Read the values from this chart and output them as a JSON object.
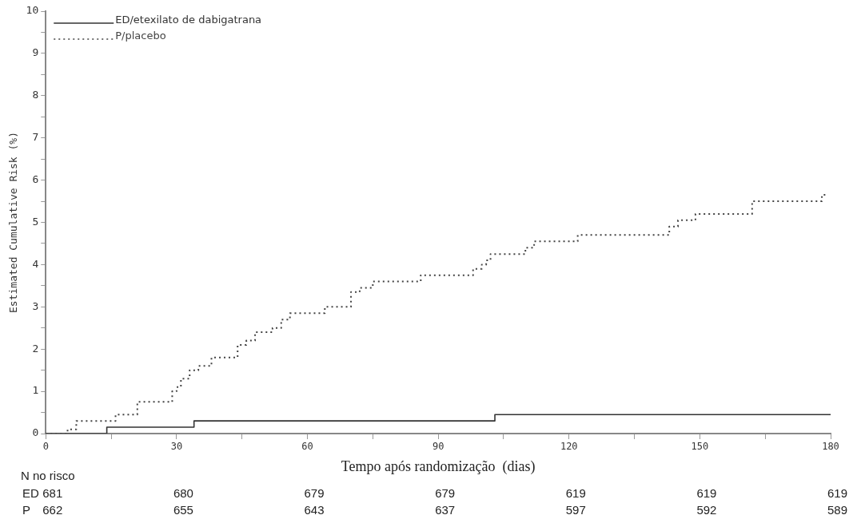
{
  "chart_data": {
    "type": "step",
    "xlabel": "Tempo após randomização  (dias)",
    "ylabel": "Estimated Cumulative Risk (%)",
    "xlim": [
      0,
      180
    ],
    "xticks": [
      0,
      {
        "value": 15,
        "label": null
      },
      30,
      {
        "value": 45,
        "label": null
      },
      60,
      {
        "value": 75,
        "label": null
      },
      90,
      {
        "value": 105,
        "label": null
      },
      120,
      {
        "value": 135,
        "label": null
      },
      150,
      {
        "value": 165,
        "label": null
      },
      180
    ],
    "ylim": [
      0,
      10
    ],
    "yticks": [
      0,
      {
        "value": 0.5,
        "label": null
      },
      1,
      {
        "value": 1.5,
        "label": null
      },
      2,
      {
        "value": 2.5,
        "label": null
      },
      3,
      {
        "value": 3.5,
        "label": null
      },
      4,
      {
        "value": 4.5,
        "label": null
      },
      5,
      {
        "value": 5.5,
        "label": null
      },
      6,
      {
        "value": 6.5,
        "label": null
      },
      7,
      {
        "value": 7.5,
        "label": null
      },
      8,
      {
        "value": 8.5,
        "label": null
      },
      9,
      {
        "value": 9.5,
        "label": null
      },
      10
    ],
    "legend": "top left",
    "grid": false,
    "marker": "none",
    "series": [
      {
        "name": "ED/etexilato de dabigatrana",
        "color": "#333333",
        "line_style": "solid",
        "x": [
          0,
          14,
          34,
          103,
          180
        ],
        "values": [
          0,
          0.15,
          0.3,
          0.45,
          0.45
        ]
      },
      {
        "name": "P/placebo",
        "color": "#444444",
        "line_style": "dotted",
        "x": [
          0,
          5,
          7,
          16,
          21,
          29,
          30,
          31,
          33,
          35,
          38,
          44,
          46,
          48,
          52,
          54,
          56,
          64,
          70,
          72,
          75,
          86,
          98,
          100,
          101,
          102,
          110,
          112,
          122,
          143,
          145,
          149,
          162,
          178,
          179
        ],
        "values": [
          0,
          0.1,
          0.3,
          0.45,
          0.75,
          1.0,
          1.1,
          1.3,
          1.5,
          1.6,
          1.8,
          2.1,
          2.2,
          2.4,
          2.5,
          2.7,
          2.85,
          3.0,
          3.35,
          3.45,
          3.6,
          3.75,
          3.9,
          4.0,
          4.1,
          4.25,
          4.4,
          4.55,
          4.7,
          4.9,
          5.05,
          5.2,
          5.5,
          5.65,
          5.7
        ]
      }
    ],
    "annotations": [
      "N no risco",
      "ED",
      "681",
      "680",
      "679",
      "679",
      "619",
      "619",
      "619",
      "P",
      "662",
      "655",
      "643",
      "637",
      "597",
      "592",
      "589"
    ]
  }
}
